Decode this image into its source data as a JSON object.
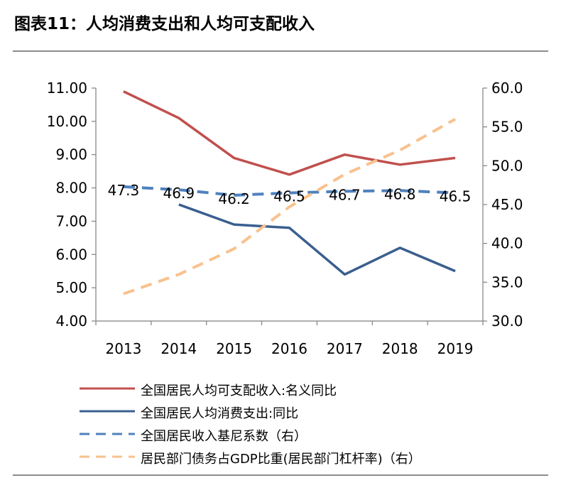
{
  "title": "图表11：人均消费支出和人均可支配收入",
  "colors": {
    "income": "#c0504d",
    "consumption": "#3a5f8f",
    "gini": "#4f81bd",
    "debt": "#f8c18e",
    "axis": "#808080"
  },
  "chart_data": {
    "type": "line",
    "x": [
      "2013",
      "2014",
      "2015",
      "2016",
      "2017",
      "2018",
      "2019"
    ],
    "y_left": {
      "ylim": [
        4.0,
        11.0
      ],
      "ticks": [
        "4.00",
        "5.00",
        "6.00",
        "7.00",
        "8.00",
        "9.00",
        "10.00",
        "11.00"
      ]
    },
    "y_right": {
      "ylim": [
        30.0,
        60.0
      ],
      "ticks": [
        "30.0",
        "35.0",
        "40.0",
        "45.0",
        "50.0",
        "55.0",
        "60.0"
      ]
    },
    "grid": false,
    "legend": "bottom",
    "series": [
      {
        "name": "全国居民人均可支配收入:名义同比",
        "axis": "left",
        "style": "solid",
        "values": [
          10.9,
          10.1,
          8.9,
          8.4,
          9.0,
          8.7,
          8.9
        ]
      },
      {
        "name": "全国居民人均消费支出:同比",
        "axis": "left",
        "style": "solid",
        "values": [
          null,
          7.5,
          6.9,
          6.8,
          5.4,
          6.2,
          5.5
        ]
      },
      {
        "name": "全国居民收入基尼系数（右）",
        "axis": "right",
        "style": "dashed",
        "values": [
          47.3,
          46.9,
          46.2,
          46.5,
          46.7,
          46.8,
          46.5
        ],
        "labels": [
          "47.3",
          "46.9",
          "46.2",
          "46.5",
          "46.7",
          "46.8",
          "46.5"
        ]
      },
      {
        "name": "居民部门债务占GDP比重(居民部门杠杆率)（右）",
        "axis": "right",
        "style": "dashed",
        "values": [
          33.5,
          36.0,
          39.3,
          44.7,
          48.9,
          52.0,
          56.0
        ]
      }
    ]
  }
}
